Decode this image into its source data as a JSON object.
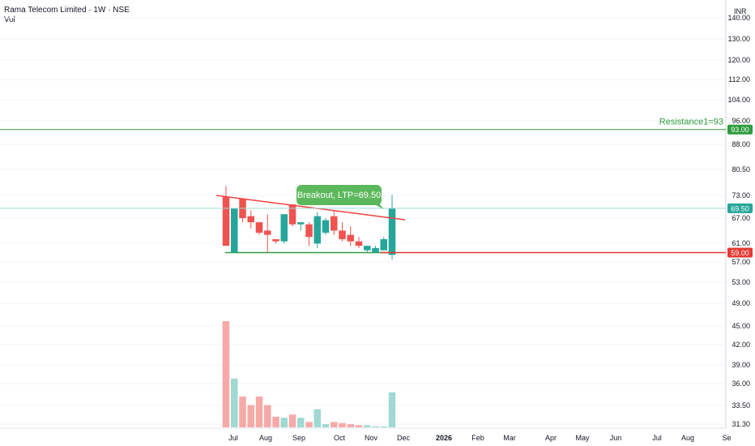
{
  "header": {
    "title": "Rama Telecom Limited · 1W · NSE",
    "indicator": "Vol",
    "currency": "INR"
  },
  "price_axis": {
    "ticks": [
      "140.00",
      "130.00",
      "120.00",
      "112.00",
      "104.00",
      "96.00",
      "88.00",
      "80.50",
      "73.00",
      "67.00",
      "61.00",
      "57.00",
      "53.00",
      "49.00",
      "45.00",
      "42.00",
      "39.00",
      "36.00",
      "33.50",
      "31.30"
    ]
  },
  "time_axis": {
    "labels": [
      "Jul",
      "Aug",
      "Sep",
      "Oct",
      "Nov",
      "Dec",
      "2026",
      "Feb",
      "Mar",
      "Apr",
      "May",
      "Jun",
      "Jul",
      "Aug",
      "Se"
    ]
  },
  "annotations": {
    "breakout_label": "Breakout, LTP=69.50",
    "resistance_text": "Resistance1=93",
    "resistance_badge": "93.00",
    "ltp_badge": "69.50",
    "support_badge": "59.00"
  },
  "colors": {
    "up": "#26a69a",
    "down": "#ef5350",
    "up_vol": "#9fd9d2",
    "down_vol": "#f7a9a7",
    "resistance": "#2e9b3d",
    "support": "#e53935",
    "breakout_bg": "#5cb85c",
    "trendline_upper": "#f44343",
    "trendline_lower": "#2e9b3d"
  },
  "chart_data": {
    "type": "candlestick",
    "symbol": "Rama Telecom Limited",
    "interval": "1W",
    "exchange": "NSE",
    "price_scale": "log",
    "candles": [
      {
        "o": 72.5,
        "h": 75.5,
        "l": 60.5,
        "c": 60.5,
        "v": 1.0
      },
      {
        "o": 59.0,
        "h": 69.5,
        "l": 59.0,
        "c": 69.5,
        "v": 0.46
      },
      {
        "o": 72.0,
        "h": 72.0,
        "l": 66.0,
        "c": 67.0,
        "v": 0.29
      },
      {
        "o": 67.5,
        "h": 69.0,
        "l": 64.5,
        "c": 66.0,
        "v": 0.21
      },
      {
        "o": 66.0,
        "h": 66.0,
        "l": 63.0,
        "c": 63.5,
        "v": 0.29
      },
      {
        "o": 64.0,
        "h": 68.0,
        "l": 59.0,
        "c": 63.0,
        "v": 0.21
      },
      {
        "o": 62.0,
        "h": 62.0,
        "l": 61.0,
        "c": 61.5,
        "v": 0.1
      },
      {
        "o": 61.5,
        "h": 68.0,
        "l": 61.0,
        "c": 68.0,
        "v": 0.09
      },
      {
        "o": 70.5,
        "h": 70.5,
        "l": 65.0,
        "c": 65.5,
        "v": 0.12
      },
      {
        "o": 65.5,
        "h": 66.0,
        "l": 64.0,
        "c": 66.0,
        "v": 0.09
      },
      {
        "o": 65.5,
        "h": 66.0,
        "l": 60.5,
        "c": 62.5,
        "v": 0.05
      },
      {
        "o": 61.0,
        "h": 68.5,
        "l": 60.0,
        "c": 67.5,
        "v": 0.17
      },
      {
        "o": 63.5,
        "h": 67.0,
        "l": 63.0,
        "c": 66.5,
        "v": 0.03
      },
      {
        "o": 67.5,
        "h": 69.0,
        "l": 63.0,
        "c": 64.0,
        "v": 0.05
      },
      {
        "o": 64.0,
        "h": 66.0,
        "l": 61.5,
        "c": 62.0,
        "v": 0.04
      },
      {
        "o": 63.0,
        "h": 65.0,
        "l": 60.5,
        "c": 61.5,
        "v": 0.03
      },
      {
        "o": 61.5,
        "h": 62.5,
        "l": 60.0,
        "c": 60.5,
        "v": 0.02
      },
      {
        "o": 59.5,
        "h": 60.5,
        "l": 59.0,
        "c": 60.5,
        "v": 0.02
      },
      {
        "o": 59.0,
        "h": 60.5,
        "l": 59.0,
        "c": 60.0,
        "v": 0.01
      },
      {
        "o": 59.5,
        "h": 62.5,
        "l": 59.5,
        "c": 62.0,
        "v": 0.01
      },
      {
        "o": 58.5,
        "h": 73.0,
        "l": 57.5,
        "c": 69.5,
        "v": 0.33
      }
    ],
    "resistance_level": 93,
    "ltp": 69.5,
    "support_level": 59,
    "legend_placement": "top-left"
  }
}
